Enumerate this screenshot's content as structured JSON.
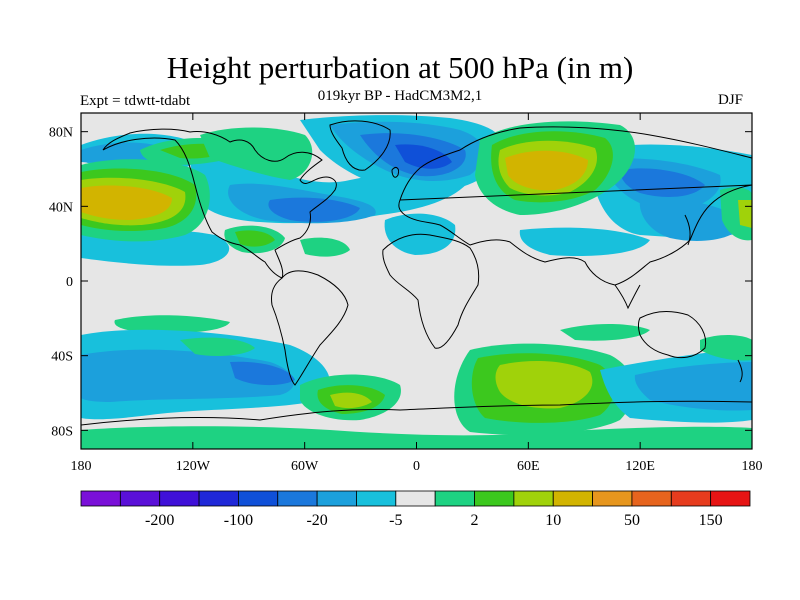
{
  "title": "Height perturbation at 500 hPa (in m)",
  "subtitle": "019kyr BP - HadCM3M2,1",
  "expt_label": "Expt = tdwtt-tdabt",
  "season_label": "DJF",
  "map": {
    "lon_ticks": [
      "180",
      "120W",
      "60W",
      "0",
      "60E",
      "120E",
      "180"
    ],
    "lat_ticks": [
      "80N",
      "40N",
      "0",
      "40S",
      "80S"
    ]
  },
  "colorbar": {
    "colors": [
      "#7a10d8",
      "#5a10d8",
      "#3f10d8",
      "#1f28d8",
      "#0f50d8",
      "#1b78dc",
      "#1ca0dc",
      "#18c0dc",
      "#e6e6e6",
      "#1ed282",
      "#3cc81e",
      "#a0d20a",
      "#d2b400",
      "#e6961e",
      "#e6641e",
      "#e63c1e",
      "#e61414"
    ],
    "labels": [
      "-200",
      "-100",
      "-20",
      "-5",
      "2",
      "10",
      "50",
      "150"
    ]
  }
}
